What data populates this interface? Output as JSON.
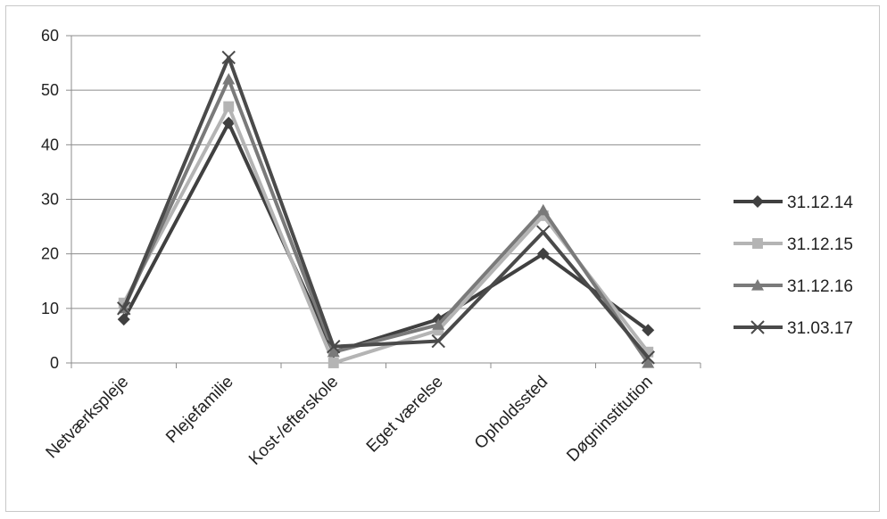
{
  "chart_data": {
    "type": "line",
    "title": "",
    "xlabel": "",
    "ylabel": "",
    "categories": [
      "Netværkspleje",
      "Plejefamilie",
      "Kost-/efterskole",
      "Eget værelse",
      "Opholdssted",
      "Døgninstitution"
    ],
    "ylim": [
      0,
      60
    ],
    "yticks": [
      "0",
      "10",
      "20",
      "30",
      "40",
      "50",
      "60"
    ],
    "grid": true,
    "legend_position": "right",
    "series": [
      {
        "name": "31.12.14",
        "values": [
          8,
          44,
          2,
          8,
          20,
          6
        ],
        "color": "#404040",
        "marker": "diamond"
      },
      {
        "name": "31.12.15",
        "values": [
          11,
          47,
          0,
          6,
          27,
          2
        ],
        "color": "#b4b4b4",
        "marker": "square"
      },
      {
        "name": "31.12.16",
        "values": [
          10,
          52,
          2,
          7,
          28,
          0
        ],
        "color": "#7a7a7a",
        "marker": "triangle"
      },
      {
        "name": "31.03.17",
        "values": [
          10,
          56,
          3,
          4,
          24,
          1
        ],
        "color": "#4a4a4a",
        "marker": "x"
      }
    ]
  }
}
